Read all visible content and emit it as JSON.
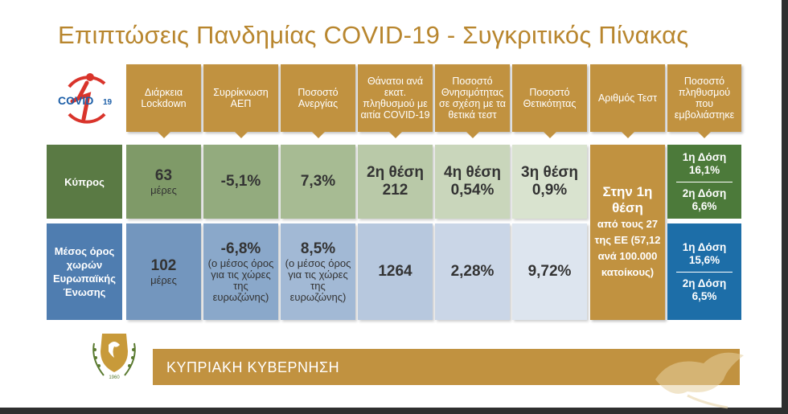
{
  "title": "Επιπτώσεις Πανδημίας COVID-19 - Συγκριτικός Πίνακας",
  "logo": {
    "text_main": "COVID",
    "text_num": "19"
  },
  "headers": [
    "Διάρκεια Lockdown",
    "Συρρίκνωση ΑΕΠ",
    "Ποσοστό Ανεργίας",
    "Θάνατοι ανά εκατ. πληθυσμού με αιτία COVID-19",
    "Ποσοστό Θνησιμότητας σε σχέση με τα θετικά τεστ",
    "Ποσοστό Θετικότητας",
    "Αριθμός Τεστ",
    "Ποσοστό πληθυσμού που εμβολιάστηκε"
  ],
  "rows": {
    "cyprus": {
      "label": "Κύπρος",
      "lockdown_value": "63",
      "lockdown_unit": "μέρες",
      "gdp": "-5,1%",
      "unemployment": "7,3%",
      "deaths_rank": "2η θέση",
      "deaths_value": "212",
      "mortality_rank": "4η θέση",
      "mortality_value": "0,54%",
      "positivity_rank": "3η θέση",
      "positivity_value": "0,9%",
      "vaccine_dose1_label": "1η Δόση",
      "vaccine_dose1_value": "16,1%",
      "vaccine_dose2_label": "2η Δόση",
      "vaccine_dose2_value": "6,6%"
    },
    "eu": {
      "label": "Μέσος όρος χωρών Ευρωπαϊκής Ένωσης",
      "lockdown_value": "102",
      "lockdown_unit": "μέρες",
      "gdp": "-6,8%",
      "gdp_note": "(ο μέσος όρος για τις χώρες της ευρωζώνης)",
      "unemployment": "8,5%",
      "unemployment_note": "(ο μέσος όρος για τις χώρες της ευρωζώνης)",
      "deaths_value": "1264",
      "mortality_value": "2,28%",
      "positivity_value": "9,72%",
      "vaccine_dose1_label": "1η Δόση",
      "vaccine_dose1_value": "15,6%",
      "vaccine_dose2_label": "2η Δόση",
      "vaccine_dose2_value": "6,5%"
    }
  },
  "tests": {
    "line1": "Στην 1η θέση",
    "line2": "από τους 27 της ΕΕ (57,12 ανά 100.000 κατοίκους)"
  },
  "footer": {
    "government": "ΚΥΠΡΙΑΚΗ ΚΥΒΕΡΝΗΣΗ"
  },
  "colors": {
    "gold": "#c19240",
    "title_gold": "#b8862e",
    "cyprus_green": "#5a7a44",
    "eu_blue": "#4f7db0",
    "vac_green": "#4c7a3a",
    "vac_blue": "#1d6ea8"
  }
}
